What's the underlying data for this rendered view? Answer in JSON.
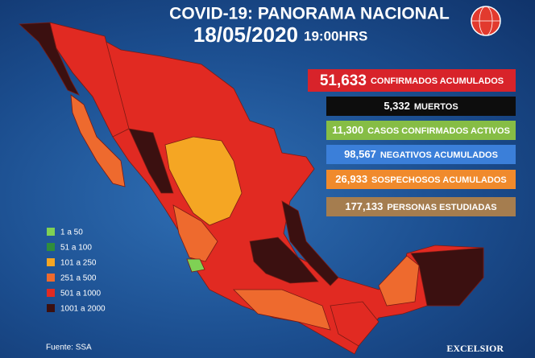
{
  "header": {
    "title": "COVID-19: PANORAMA NACIONAL",
    "date": "18/05/2020",
    "time": "19:00HRS"
  },
  "stats": [
    {
      "value": "51,633",
      "label": "CONFIRMADOS ACUMULADOS",
      "color": "#d8232a",
      "text_color": "#ffffff"
    },
    {
      "value": "5,332",
      "label": "MUERTOS",
      "color": "#0d0d0d",
      "text_color": "#ffffff"
    },
    {
      "value": "11,300",
      "label": "CASOS CONFIRMADOS ACTIVOS",
      "color": "#86bd45",
      "text_color": "#ffffff"
    },
    {
      "value": "98,567",
      "label": "NEGATIVOS ACUMULADOS",
      "color": "#3b7fd9",
      "text_color": "#ffffff"
    },
    {
      "value": "26,933",
      "label": "SOSPECHOSOS ACUMULADOS",
      "color": "#f08a2c",
      "text_color": "#ffffff"
    },
    {
      "value": "177,133",
      "label": "PERSONAS ESTUDIADAS",
      "color": "#a57d4f",
      "text_color": "#ffffff"
    }
  ],
  "legend": [
    {
      "label": "1 a 50",
      "color": "#7fd154"
    },
    {
      "label": "51 a 100",
      "color": "#2f8e3c"
    },
    {
      "label": "101 a 250",
      "color": "#f5a623"
    },
    {
      "label": "251 a 500",
      "color": "#ee6a2e"
    },
    {
      "label": "501 a 1000",
      "color": "#e12a22"
    },
    {
      "label": "1001 a 2000",
      "color": "#3b1010"
    }
  ],
  "source": "Fuente: SSA",
  "brand": "EXCELSIOR"
}
